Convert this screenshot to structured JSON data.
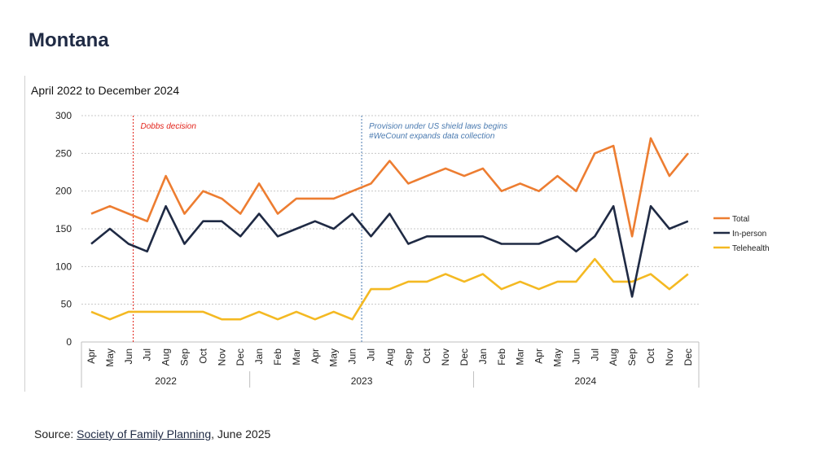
{
  "page": {
    "title": "Montana",
    "source_prefix": "Source: ",
    "source_link": "Society of Family Planning",
    "source_suffix": ", June 2025"
  },
  "chart_data": {
    "type": "line",
    "title": "April 2022 to December 2024",
    "xlabel": "",
    "ylabel": "",
    "ylim": [
      0,
      300
    ],
    "yticks": [
      0,
      50,
      100,
      150,
      200,
      250,
      300
    ],
    "grid": true,
    "legend_position": "right",
    "categories": [
      "Apr",
      "May",
      "Jun",
      "Jul",
      "Aug",
      "Sep",
      "Oct",
      "Nov",
      "Dec",
      "Jan",
      "Feb",
      "Mar",
      "Apr",
      "May",
      "Jun",
      "Jul",
      "Aug",
      "Sep",
      "Oct",
      "Nov",
      "Dec",
      "Jan",
      "Feb",
      "Mar",
      "Apr",
      "May",
      "Jun",
      "Jul",
      "Aug",
      "Sep",
      "Oct",
      "Nov",
      "Dec"
    ],
    "years": [
      {
        "label": "2022",
        "start": 0,
        "end": 8
      },
      {
        "label": "2023",
        "start": 9,
        "end": 20
      },
      {
        "label": "2024",
        "start": 21,
        "end": 32
      }
    ],
    "series": [
      {
        "name": "Total",
        "color": "#ed7d31",
        "values": [
          170,
          180,
          170,
          160,
          220,
          170,
          200,
          190,
          170,
          210,
          170,
          190,
          190,
          190,
          200,
          210,
          240,
          210,
          220,
          230,
          220,
          230,
          200,
          210,
          200,
          220,
          200,
          250,
          260,
          140,
          270,
          220,
          250
        ]
      },
      {
        "name": "In-person",
        "color": "#1f2a44",
        "values": [
          130,
          150,
          130,
          120,
          180,
          130,
          160,
          160,
          140,
          170,
          140,
          150,
          160,
          150,
          170,
          140,
          170,
          130,
          140,
          140,
          140,
          140,
          130,
          130,
          130,
          140,
          120,
          140,
          180,
          60,
          180,
          150,
          160
        ]
      },
      {
        "name": "Telehealth",
        "color": "#f4b922",
        "values": [
          40,
          30,
          40,
          40,
          40,
          40,
          40,
          30,
          30,
          40,
          30,
          40,
          30,
          40,
          30,
          70,
          70,
          80,
          80,
          90,
          80,
          90,
          70,
          80,
          70,
          80,
          80,
          110,
          80,
          80,
          90,
          70,
          90
        ]
      }
    ],
    "annotations": [
      {
        "text": "Dobbs decision",
        "position": 2.25,
        "color": "#e2231a"
      },
      {
        "text": "Provision under US shield laws begins\n#WeCount expands data collection",
        "position": 14.5,
        "color": "#4a7ab0"
      }
    ]
  }
}
